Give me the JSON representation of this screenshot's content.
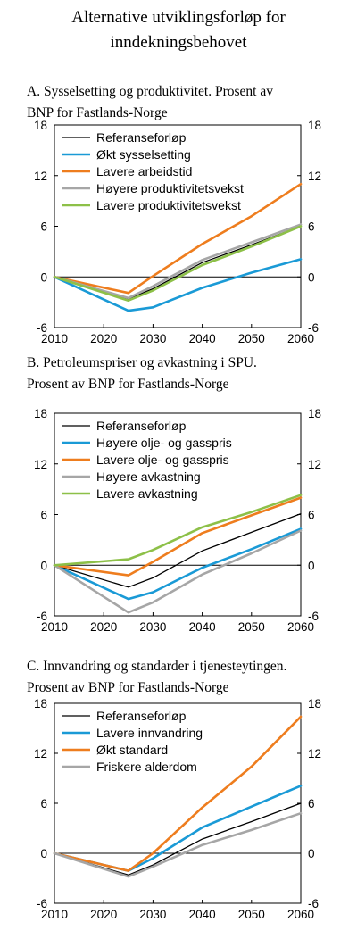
{
  "main_title": [
    "Alternative utviklingsforløp for",
    "inndekningsbehovet"
  ],
  "chart_data": [
    {
      "type": "line",
      "title": [
        "A.   Sysselsetting og produktivitet. Prosent av",
        "BNP for Fastlands-Norge"
      ],
      "x": [
        2010,
        2025,
        2030,
        2040,
        2050,
        2060
      ],
      "xlim": [
        2010,
        2060
      ],
      "xticks": [
        2010,
        2020,
        2030,
        2040,
        2050,
        2060
      ],
      "ylim": [
        -6,
        18
      ],
      "yticks": [
        -6,
        0,
        6,
        12,
        18
      ],
      "legend_position": "top-left",
      "series": [
        {
          "name": "Referanseforløp",
          "color": "#000000",
          "width": 1.3,
          "values": [
            0,
            -2.6,
            -1.4,
            1.7,
            3.8,
            6.0
          ]
        },
        {
          "name": "Økt sysselsetting",
          "color": "#1a9ad6",
          "width": 2.6,
          "values": [
            0,
            -4.0,
            -3.6,
            -1.3,
            0.5,
            2.1
          ]
        },
        {
          "name": "Lavere arbeidstid",
          "color": "#ee7d1e",
          "width": 2.6,
          "values": [
            0,
            -1.9,
            0.1,
            3.9,
            7.2,
            11.0
          ]
        },
        {
          "name": "Høyere produktivitetsvekst",
          "color": "#a6a6a6",
          "width": 2.6,
          "values": [
            0,
            -2.5,
            -1.1,
            2.0,
            4.1,
            6.2
          ]
        },
        {
          "name": "Lavere produktivitetsvekst",
          "color": "#8dc048",
          "width": 2.6,
          "values": [
            0,
            -2.8,
            -1.6,
            1.4,
            3.6,
            6.0
          ]
        }
      ]
    },
    {
      "type": "line",
      "title": [
        "B.   Petroleumspriser og avkastning i SPU.",
        "Prosent av BNP for Fastlands-Norge"
      ],
      "x": [
        2010,
        2025,
        2030,
        2040,
        2050,
        2060
      ],
      "xlim": [
        2010,
        2060
      ],
      "xticks": [
        2010,
        2020,
        2030,
        2040,
        2050,
        2060
      ],
      "ylim": [
        -6,
        18
      ],
      "yticks": [
        -6,
        0,
        6,
        12,
        18
      ],
      "legend_position": "top-left",
      "series": [
        {
          "name": "Referanseforløp",
          "color": "#000000",
          "width": 1.3,
          "values": [
            0,
            -2.6,
            -1.5,
            1.7,
            3.9,
            6.1
          ]
        },
        {
          "name": "Høyere olje- og gasspris",
          "color": "#1a9ad6",
          "width": 2.6,
          "values": [
            0,
            -4.0,
            -3.2,
            -0.3,
            1.9,
            4.3
          ]
        },
        {
          "name": "Lavere olje- og gasspris",
          "color": "#ee7d1e",
          "width": 2.6,
          "values": [
            0,
            -1.2,
            0.4,
            3.8,
            5.9,
            8.0
          ]
        },
        {
          "name": "Høyere avkastning",
          "color": "#a6a6a6",
          "width": 2.6,
          "values": [
            0,
            -5.6,
            -4.4,
            -1.1,
            1.4,
            4.1
          ]
        },
        {
          "name": "Lavere avkastning",
          "color": "#8dc048",
          "width": 2.6,
          "values": [
            0,
            0.7,
            1.8,
            4.5,
            6.3,
            8.3
          ]
        }
      ]
    },
    {
      "type": "line",
      "title": [
        "C.   Innvandring og standarder i tjenesteytingen.",
        "Prosent av BNP for Fastlands-Norge"
      ],
      "x": [
        2010,
        2025,
        2030,
        2040,
        2050,
        2060
      ],
      "xlim": [
        2010,
        2060
      ],
      "xticks": [
        2010,
        2020,
        2030,
        2040,
        2050,
        2060
      ],
      "ylim": [
        -6,
        18
      ],
      "yticks": [
        -6,
        0,
        6,
        12,
        18
      ],
      "legend_position": "top-left",
      "series": [
        {
          "name": "Referanseforløp",
          "color": "#000000",
          "width": 1.3,
          "values": [
            0,
            -2.6,
            -1.4,
            1.7,
            3.8,
            6.0
          ]
        },
        {
          "name": "Lavere innvandring",
          "color": "#1a9ad6",
          "width": 2.6,
          "values": [
            0,
            -2.1,
            -0.6,
            3.1,
            5.6,
            8.1
          ]
        },
        {
          "name": "Økt standard",
          "color": "#ee7d1e",
          "width": 2.6,
          "values": [
            0,
            -2.1,
            0.0,
            5.5,
            10.4,
            16.4
          ]
        },
        {
          "name": "Friskere alderdom",
          "color": "#a6a6a6",
          "width": 2.6,
          "values": [
            0,
            -2.8,
            -1.6,
            1.0,
            2.8,
            4.8
          ]
        }
      ]
    }
  ]
}
